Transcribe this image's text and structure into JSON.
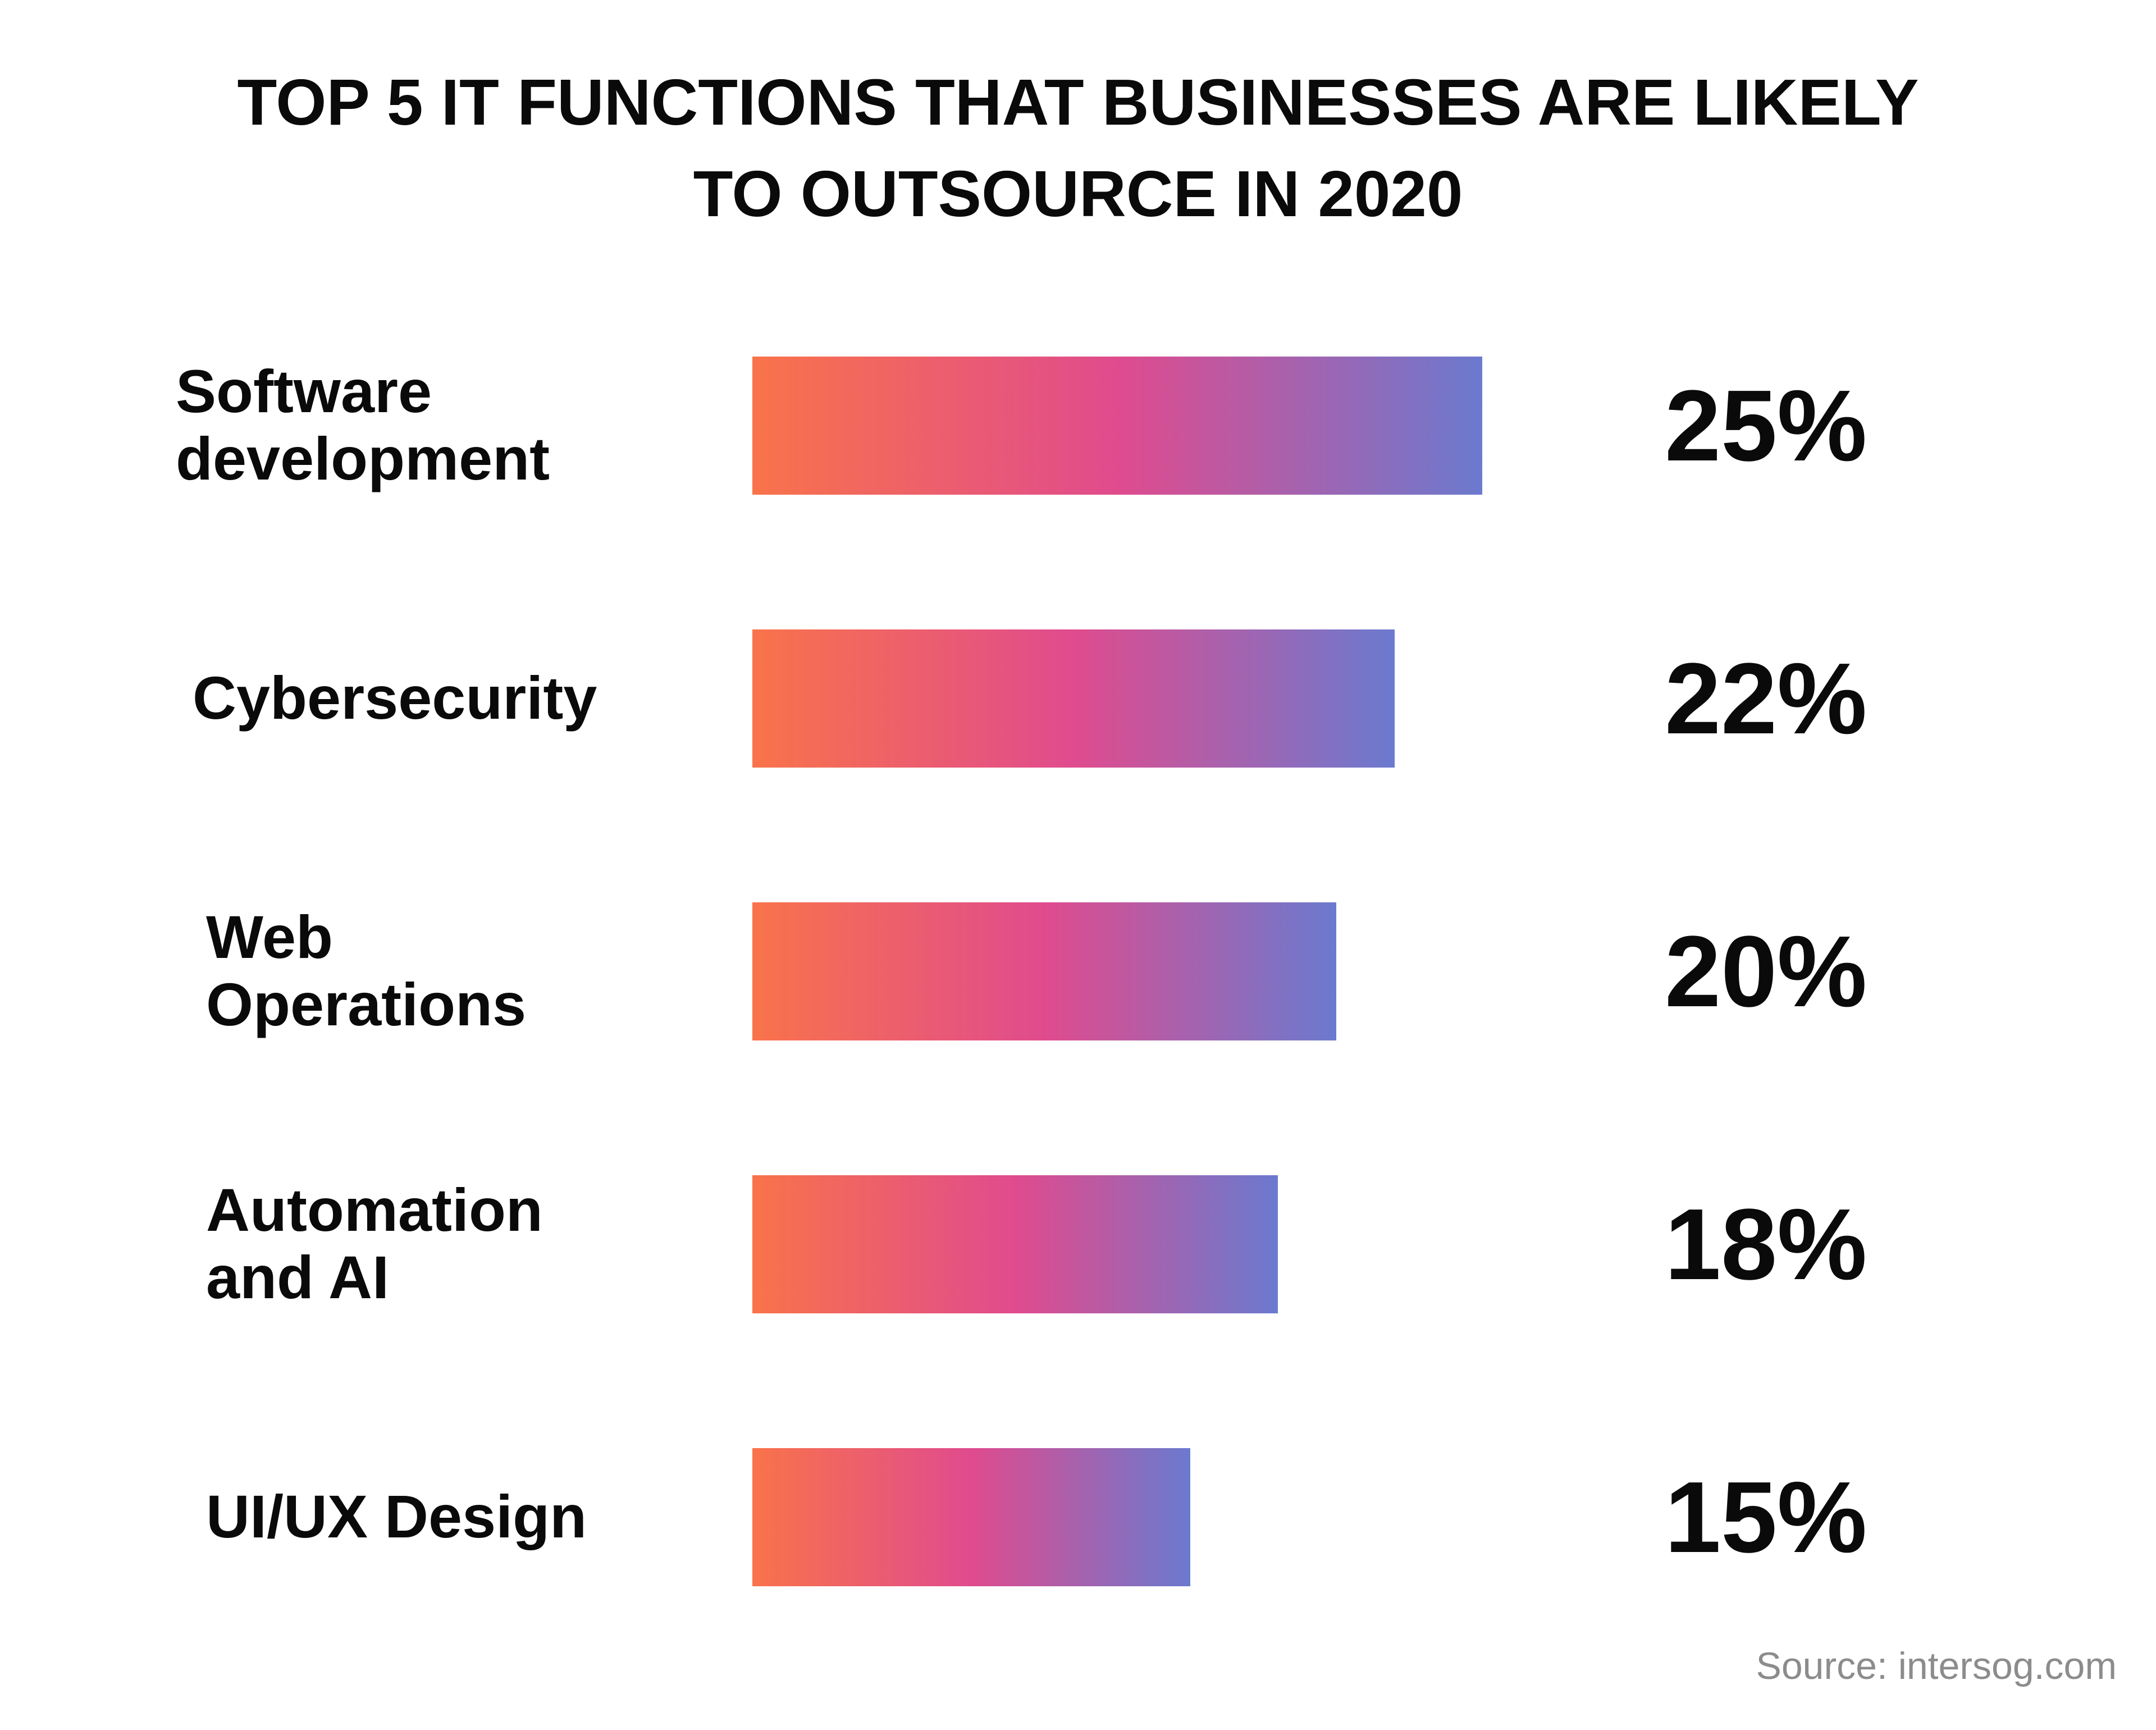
{
  "chart_data": {
    "type": "bar",
    "orientation": "horizontal",
    "title": [
      "TOP 5 IT FUNCTIONS THAT BUSINESSES ARE LIKELY",
      "TO OUTSOURCE IN 2020"
    ],
    "categories": [
      [
        "Software",
        "development"
      ],
      [
        "Cybersecurity"
      ],
      [
        "Web",
        "Operations"
      ],
      [
        "Automation",
        "and AI"
      ],
      [
        "UI/UX Design"
      ]
    ],
    "values": [
      25,
      22,
      20,
      18,
      15
    ],
    "value_labels": [
      "25%",
      "22%",
      "20%",
      "18%",
      "15%"
    ],
    "unit": "%",
    "xlim": [
      0,
      25
    ],
    "grid": false,
    "legend": "none",
    "source": "Source: intersog.com",
    "bar_gradient": [
      "#f9734a",
      "#e04b8e",
      "#6b7acf"
    ],
    "text_color": "#0a0a0a",
    "source_color": "#8c8c8c"
  }
}
